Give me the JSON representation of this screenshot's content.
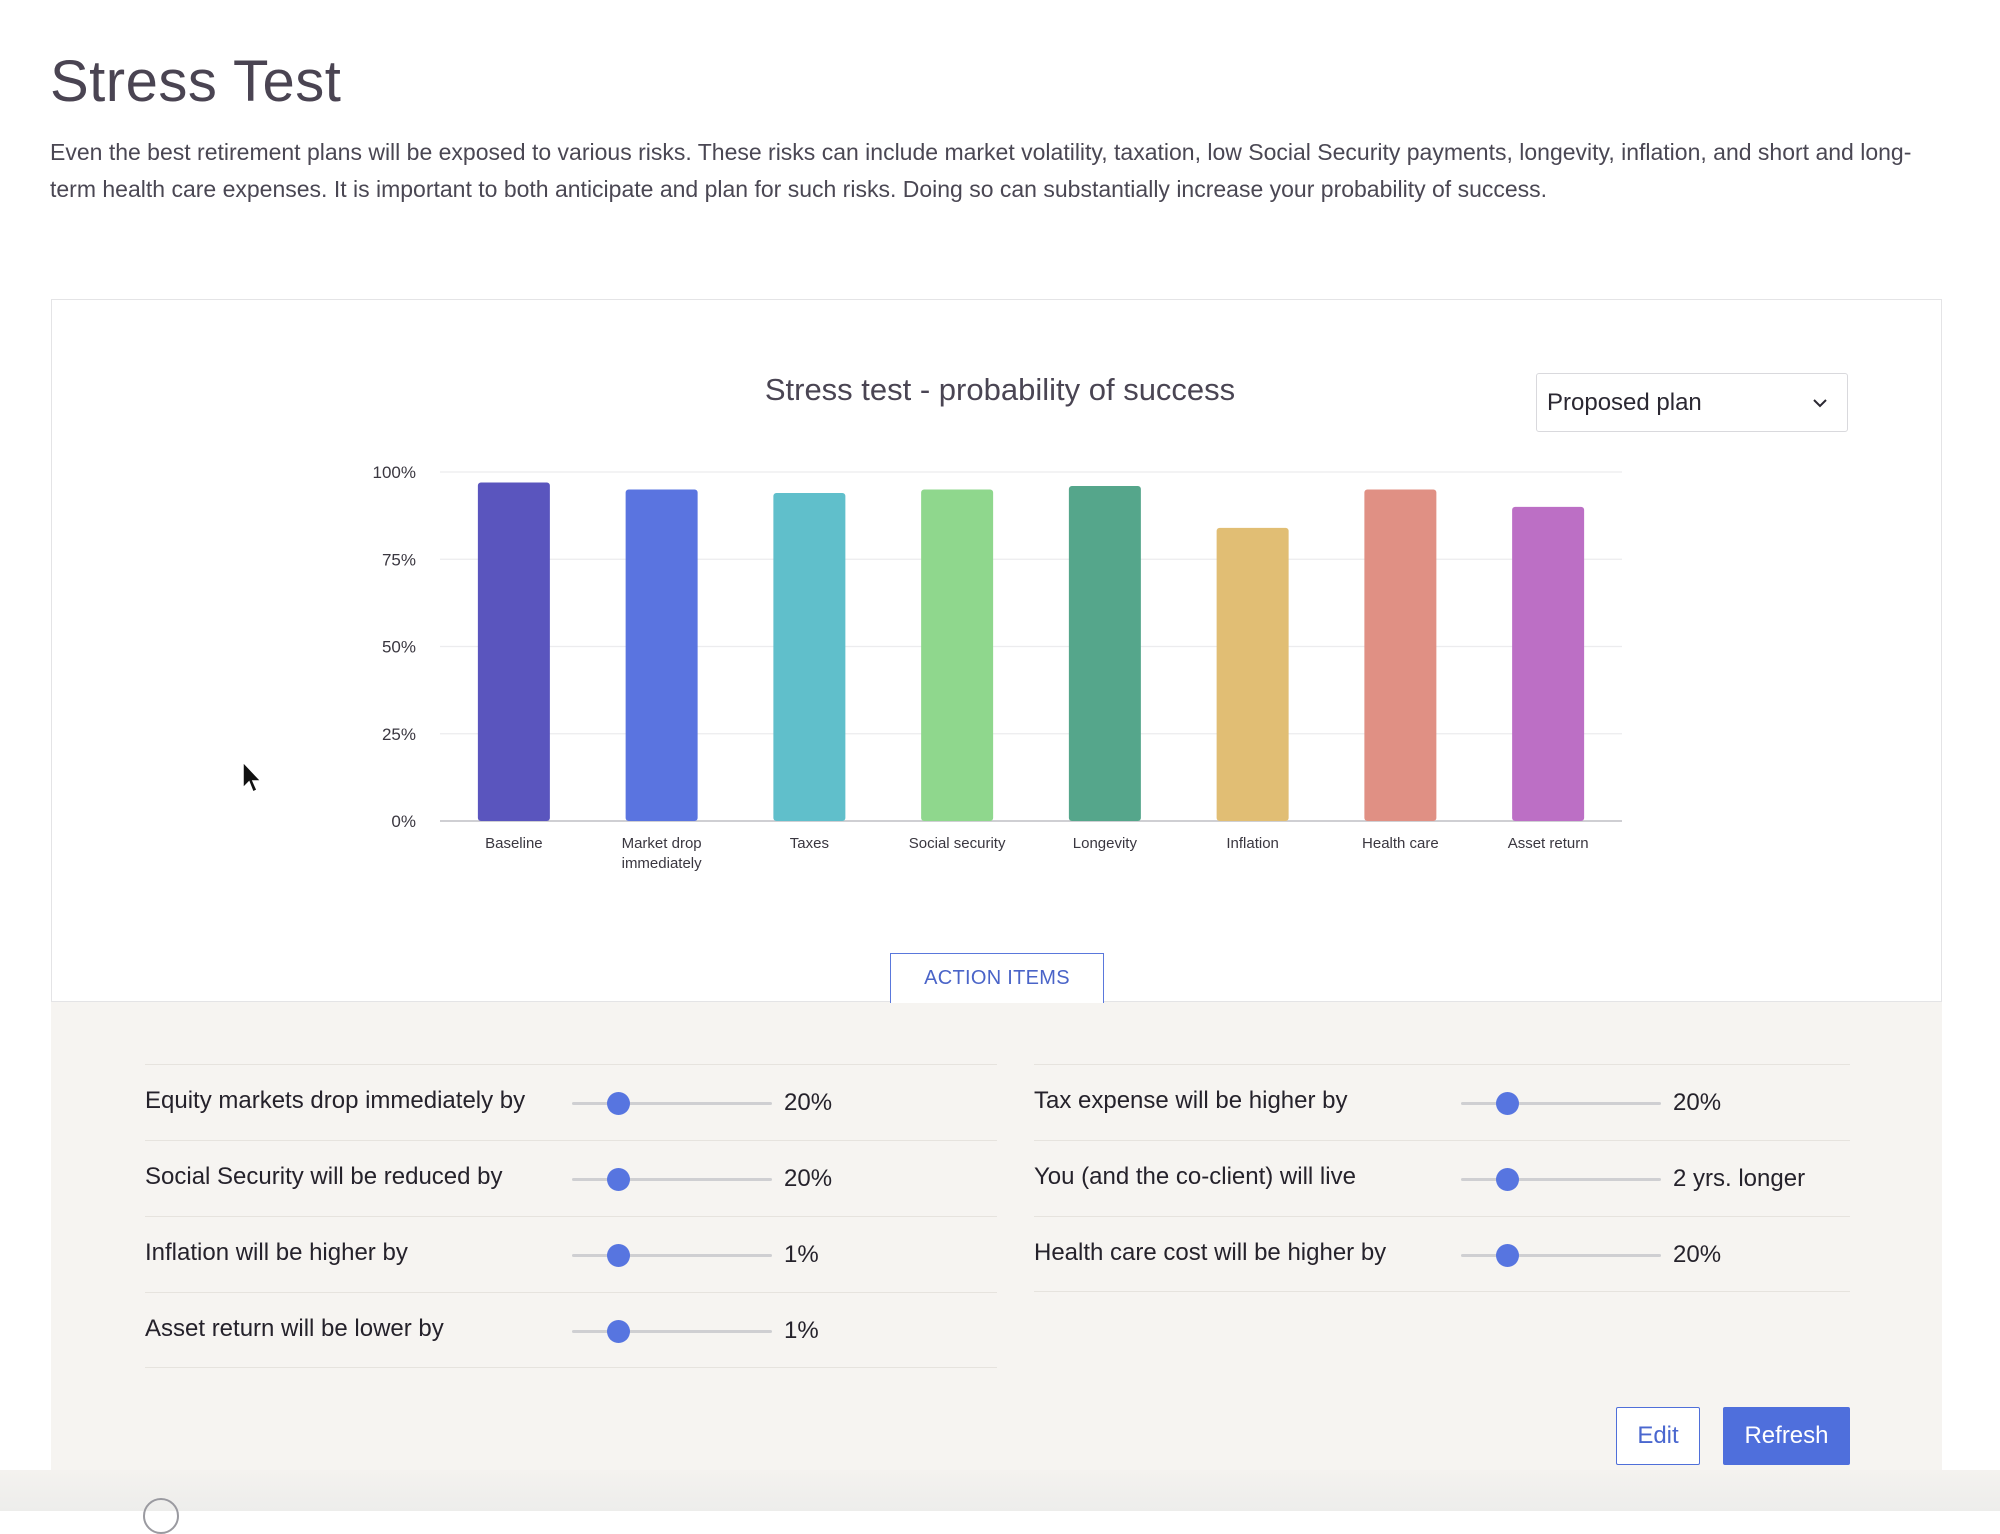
{
  "page": {
    "title": "Stress Test",
    "intro": "Even the best retirement plans will be exposed to various risks. These risks can include market volatility, taxation, low Social Security payments, longevity, inflation, and short and long-term health care expenses. It is important to both anticipate and plan for such risks. Doing so can substantially increase your probability of success."
  },
  "plan_select": {
    "value": "Proposed plan",
    "icon": "chevron-down-icon"
  },
  "chart_data": {
    "type": "bar",
    "title": "Stress test - probability of success",
    "xlabel": "",
    "ylabel": "",
    "ylim": [
      0,
      100
    ],
    "y_ticks": [
      {
        "value": 0,
        "label": "0%"
      },
      {
        "value": 25,
        "label": "25%"
      },
      {
        "value": 50,
        "label": "50%"
      },
      {
        "value": 75,
        "label": "75%"
      },
      {
        "value": 100,
        "label": "100%"
      }
    ],
    "grid": true,
    "categories": [
      [
        "Baseline"
      ],
      [
        "Market drop",
        "immediately"
      ],
      [
        "Taxes"
      ],
      [
        "Social security"
      ],
      [
        "Longevity"
      ],
      [
        "Inflation"
      ],
      [
        "Health care"
      ],
      [
        "Asset return"
      ]
    ],
    "values": [
      97,
      95,
      94,
      95,
      96,
      84,
      95,
      90
    ],
    "colors": [
      "#5a55be",
      "#5a74e0",
      "#60bfcb",
      "#8fd78d",
      "#55a68b",
      "#e1be74",
      "#e09084",
      "#bc6fc5"
    ]
  },
  "action_items": {
    "tab_label": "ACTION ITEMS",
    "left": [
      {
        "label": "Equity markets drop immediately by",
        "value": "20%",
        "level": 0.23
      },
      {
        "label": "Social Security will be reduced by",
        "value": "20%",
        "level": 0.23
      },
      {
        "label": "Inflation will be higher by",
        "value": "1%",
        "level": 0.23
      },
      {
        "label": "Asset return will be lower by",
        "value": "1%",
        "level": 0.23
      }
    ],
    "right": [
      {
        "label": "Tax expense will be higher by",
        "value": "20%",
        "level": 0.23
      },
      {
        "label": "You (and the co-client) will live",
        "value": "2 yrs. longer",
        "level": 0.23
      },
      {
        "label": "Health care cost will be higher by",
        "value": "20%",
        "level": 0.23
      }
    ],
    "edit_label": "Edit",
    "refresh_label": "Refresh"
  }
}
